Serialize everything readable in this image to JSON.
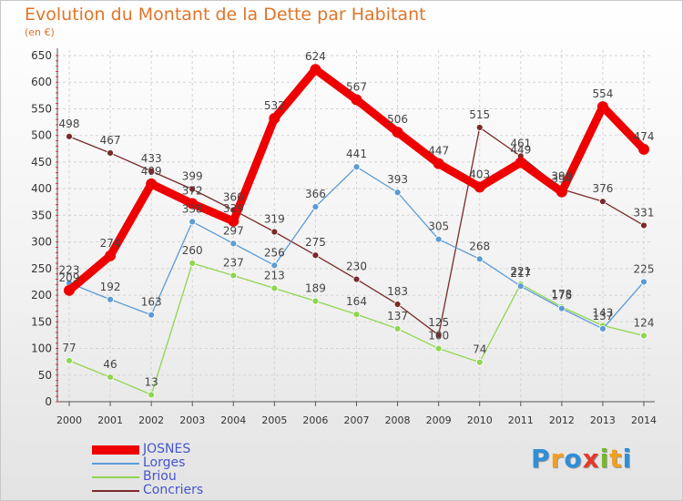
{
  "title": "Evolution du Montant de la Dette par Habitant",
  "subtitle": "(en €)",
  "logo": {
    "text": "Proxiti",
    "letters": [
      {
        "ch": "P",
        "color": "#2f8fd8"
      },
      {
        "ch": "r",
        "color": "#f0a020"
      },
      {
        "ch": "o",
        "color": "#2f8fd8"
      },
      {
        "ch": "x",
        "color": "#e43a2a"
      },
      {
        "ch": "i",
        "color": "#76b82a"
      },
      {
        "ch": "t",
        "color": "#f0a020"
      },
      {
        "ch": "i",
        "color": "#2f8fd8"
      }
    ]
  },
  "chart_data": {
    "type": "line",
    "x": [
      "2000",
      "2001",
      "2002",
      "2003",
      "2004",
      "2005",
      "2006",
      "2007",
      "2008",
      "2009",
      "2010",
      "2011",
      "2012",
      "2013",
      "2014"
    ],
    "ylim": [
      0,
      650
    ],
    "yticks": [
      0,
      50,
      100,
      150,
      200,
      250,
      300,
      350,
      400,
      450,
      500,
      550,
      600,
      650
    ],
    "grid": true,
    "legend_position": "bottom-left",
    "series": [
      {
        "name": "JOSNES",
        "color": "#ee0000",
        "values": [
          209,
          274,
          409,
          372,
          339,
          532,
          624,
          567,
          506,
          447,
          403,
          449,
          394,
          554,
          474
        ]
      },
      {
        "name": "Lorges",
        "color": "#5b9bd5",
        "values": [
          223,
          192,
          163,
          338,
          297,
          256,
          366,
          441,
          393,
          305,
          268,
          217,
          175,
          137,
          225
        ]
      },
      {
        "name": "Briou",
        "color": "#8fd650",
        "values": [
          77,
          46,
          13,
          260,
          237,
          213,
          189,
          164,
          137,
          100,
          74,
          221,
          178,
          143,
          124
        ]
      },
      {
        "name": "Concriers",
        "color": "#7a2a2a",
        "values": [
          498,
          467,
          433,
          399,
          360,
          319,
          275,
          230,
          183,
          125,
          515,
          461,
          399,
          376,
          331
        ]
      }
    ]
  }
}
